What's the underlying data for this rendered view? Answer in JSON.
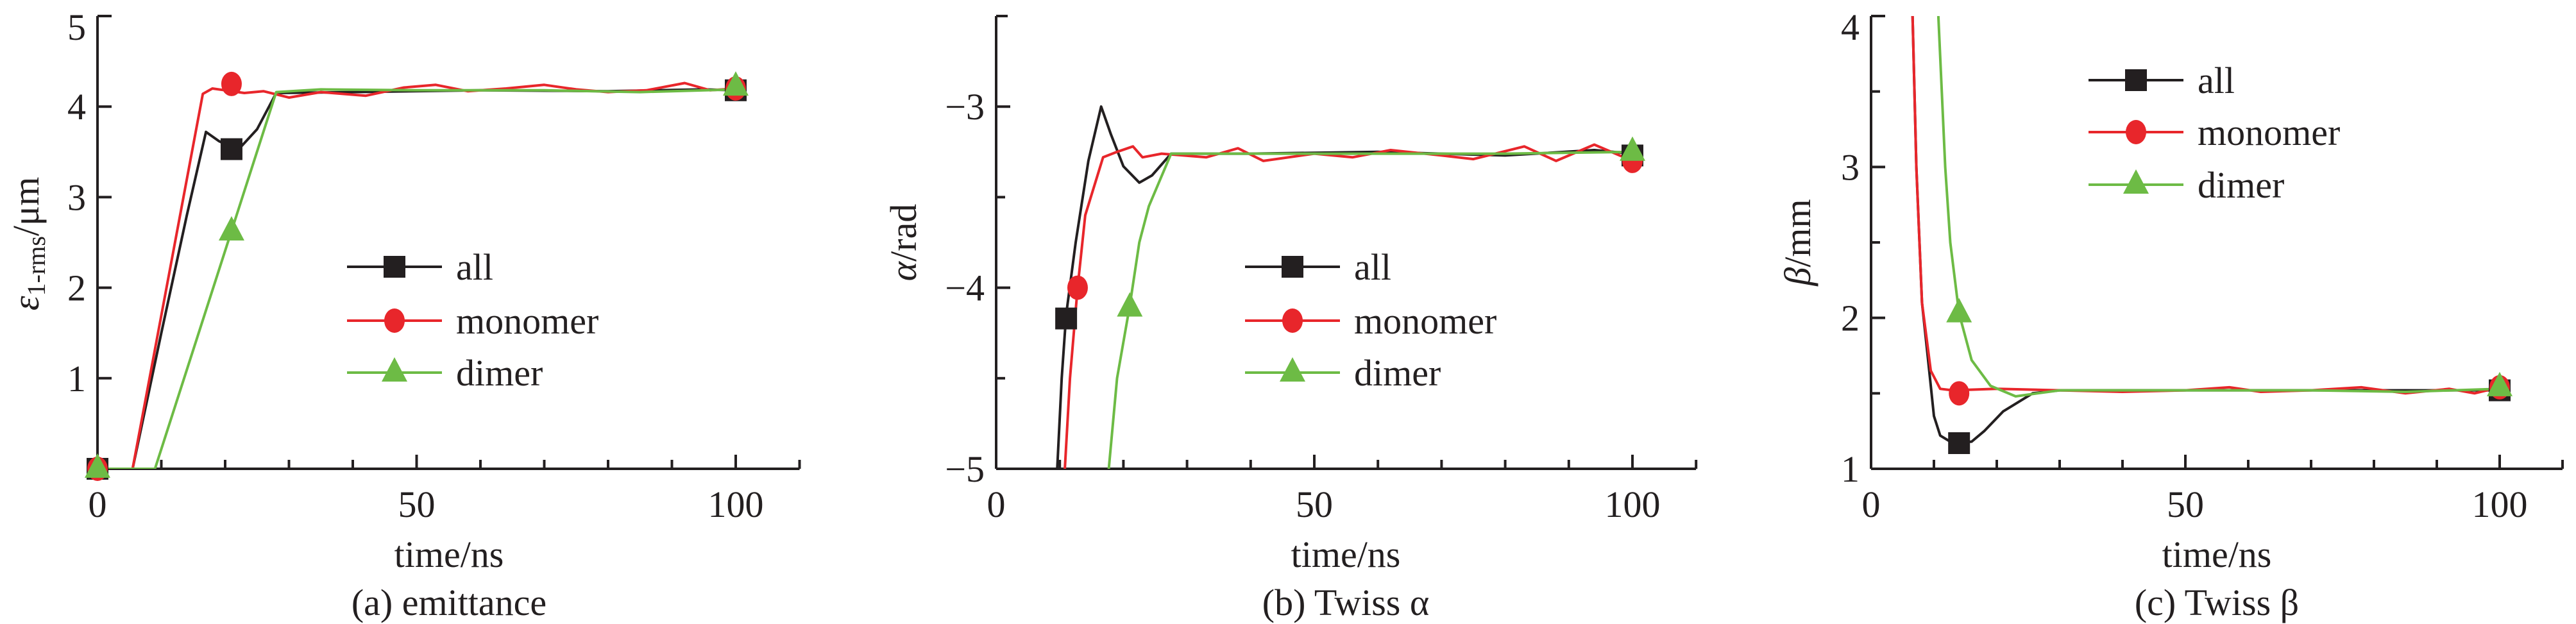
{
  "colors": {
    "all": "#231f20",
    "monomer": "#e8262b",
    "dimer": "#6dbb45",
    "axis": "#231f20"
  },
  "chart_data": [
    {
      "type": "line",
      "title": "(a) emittance",
      "xlabel": "time/ns",
      "ylabel": {
        "symbol": "ε",
        "sub": "1-rms",
        "unit": "/μm"
      },
      "xlim": [
        0,
        110
      ],
      "ylim": [
        0,
        5
      ],
      "xticks": [
        0,
        50,
        100
      ],
      "xminor": 10,
      "yticks": [
        1,
        2,
        3,
        4,
        5
      ],
      "yminor": 1,
      "xtick_labels": [
        "0",
        "50",
        "100"
      ],
      "ytick_labels": [
        "1",
        "2",
        "3",
        "4",
        "5"
      ],
      "legend_position": "center-right",
      "series": [
        {
          "name": "all",
          "key": "all",
          "marker": "square",
          "points": [
            [
              0,
              0
            ],
            [
              5.5,
              0
            ],
            [
              10,
              1.5
            ],
            [
              14,
              2.8
            ],
            [
              17,
              3.72
            ],
            [
              19,
              3.62
            ],
            [
              22,
              3.52
            ],
            [
              25,
              3.75
            ],
            [
              28,
              4.15
            ],
            [
              40,
              4.16
            ],
            [
              60,
              4.18
            ],
            [
              80,
              4.17
            ],
            [
              95,
              4.19
            ],
            [
              100,
              4.18
            ]
          ],
          "markers": [
            [
              0,
              0
            ],
            [
              21,
              3.53
            ],
            [
              100,
              4.18
            ]
          ]
        },
        {
          "name": "monomer",
          "key": "monomer",
          "marker": "circle",
          "points": [
            [
              0,
              0
            ],
            [
              5.5,
              0
            ],
            [
              16.5,
              4.14
            ],
            [
              18,
              4.2
            ],
            [
              20,
              4.18
            ],
            [
              23,
              4.15
            ],
            [
              26,
              4.17
            ],
            [
              30,
              4.1
            ],
            [
              35,
              4.16
            ],
            [
              42,
              4.12
            ],
            [
              48,
              4.21
            ],
            [
              53,
              4.24
            ],
            [
              58,
              4.17
            ],
            [
              64,
              4.2
            ],
            [
              70,
              4.24
            ],
            [
              75,
              4.19
            ],
            [
              80,
              4.16
            ],
            [
              86,
              4.18
            ],
            [
              92,
              4.26
            ],
            [
              96,
              4.18
            ],
            [
              100,
              4.2
            ]
          ],
          "markers": [
            [
              0,
              0
            ],
            [
              21,
              4.25
            ],
            [
              100,
              4.2
            ]
          ]
        },
        {
          "name": "dimer",
          "key": "dimer",
          "marker": "triangle",
          "points": [
            [
              0,
              0
            ],
            [
              9,
              0
            ],
            [
              28,
              4.16
            ],
            [
              35,
              4.19
            ],
            [
              50,
              4.18
            ],
            [
              70,
              4.18
            ],
            [
              85,
              4.16
            ],
            [
              100,
              4.19
            ]
          ],
          "markers": [
            [
              0,
              0
            ],
            [
              21,
              2.62
            ],
            [
              100,
              4.22
            ]
          ]
        }
      ]
    },
    {
      "type": "line",
      "title": "(b) Twiss α",
      "xlabel": "time/ns",
      "ylabel": {
        "symbol": "α",
        "sub": "",
        "unit": "/rad"
      },
      "xlim": [
        0,
        110
      ],
      "ylim": [
        -5,
        -2.5
      ],
      "xticks": [
        0,
        50,
        100
      ],
      "xminor": 10,
      "yticks": [
        -5,
        -4,
        -3
      ],
      "yminor": 0.5,
      "xtick_labels": [
        "0",
        "50",
        "100"
      ],
      "ytick_labels": [
        "−5",
        "−4",
        "−3"
      ],
      "legend_position": "center-right",
      "series": [
        {
          "name": "all",
          "key": "all",
          "marker": "square",
          "points": [
            [
              9.6,
              -5
            ],
            [
              10.3,
              -4.5
            ],
            [
              11,
              -4.15
            ],
            [
              12.5,
              -3.75
            ],
            [
              14.5,
              -3.3
            ],
            [
              16.5,
              -3.0
            ],
            [
              18,
              -3.15
            ],
            [
              20,
              -3.33
            ],
            [
              22.5,
              -3.42
            ],
            [
              24.5,
              -3.38
            ],
            [
              27.5,
              -3.26
            ],
            [
              40,
              -3.26
            ],
            [
              60,
              -3.25
            ],
            [
              80,
              -3.27
            ],
            [
              94,
              -3.24
            ],
            [
              100,
              -3.26
            ]
          ],
          "markers": [
            [
              11,
              -4.17
            ],
            [
              100,
              -3.27
            ]
          ]
        },
        {
          "name": "monomer",
          "key": "monomer",
          "marker": "circle",
          "points": [
            [
              10.8,
              -5
            ],
            [
              11.6,
              -4.5
            ],
            [
              12.8,
              -4.0
            ],
            [
              14,
              -3.6
            ],
            [
              16.8,
              -3.28
            ],
            [
              19,
              -3.25
            ],
            [
              21.5,
              -3.22
            ],
            [
              23,
              -3.28
            ],
            [
              26,
              -3.26
            ],
            [
              33,
              -3.28
            ],
            [
              38,
              -3.23
            ],
            [
              42,
              -3.3
            ],
            [
              50,
              -3.26
            ],
            [
              56,
              -3.28
            ],
            [
              62,
              -3.24
            ],
            [
              70,
              -3.27
            ],
            [
              75,
              -3.29
            ],
            [
              83,
              -3.22
            ],
            [
              88,
              -3.3
            ],
            [
              94,
              -3.21
            ],
            [
              100,
              -3.3
            ]
          ],
          "markers": [
            [
              12.8,
              -4.0
            ],
            [
              100,
              -3.3
            ]
          ]
        },
        {
          "name": "dimer",
          "key": "dimer",
          "marker": "triangle",
          "points": [
            [
              17.7,
              -5
            ],
            [
              19,
              -4.5
            ],
            [
              21,
              -4.1
            ],
            [
              22.5,
              -3.75
            ],
            [
              24,
              -3.55
            ],
            [
              27.5,
              -3.26
            ],
            [
              40,
              -3.26
            ],
            [
              60,
              -3.26
            ],
            [
              80,
              -3.26
            ],
            [
              100,
              -3.25
            ]
          ],
          "markers": [
            [
              21,
              -4.11
            ],
            [
              100,
              -3.25
            ]
          ]
        }
      ]
    },
    {
      "type": "line",
      "title": "(c) Twiss β",
      "xlabel": "time/ns",
      "ylabel": {
        "symbol": "β",
        "sub": "",
        "unit": "/mm"
      },
      "xlim": [
        0,
        110
      ],
      "ylim": [
        1,
        4
      ],
      "xticks": [
        0,
        50,
        100
      ],
      "xminor": 10,
      "yticks": [
        1,
        2,
        3,
        4
      ],
      "yminor": 0.5,
      "xtick_labels": [
        "0",
        "50",
        "100"
      ],
      "ytick_labels": [
        "1",
        "2",
        "3",
        "4"
      ],
      "legend_position": "top-right",
      "series": [
        {
          "name": "all",
          "key": "all",
          "marker": "square",
          "points": [
            [
              6.6,
              4
            ],
            [
              7.2,
              3
            ],
            [
              8.1,
              2.1
            ],
            [
              9,
              1.75
            ],
            [
              10,
              1.35
            ],
            [
              11,
              1.22
            ],
            [
              13,
              1.17
            ],
            [
              16,
              1.18
            ],
            [
              18,
              1.25
            ],
            [
              21,
              1.38
            ],
            [
              25.7,
              1.5
            ],
            [
              30,
              1.52
            ],
            [
              50,
              1.52
            ],
            [
              80,
              1.52
            ],
            [
              100,
              1.52
            ]
          ],
          "markers": [
            [
              14,
              1.17
            ],
            [
              100,
              1.52
            ]
          ]
        },
        {
          "name": "monomer",
          "key": "monomer",
          "marker": "circle",
          "points": [
            [
              6.6,
              4
            ],
            [
              7.2,
              3
            ],
            [
              8.1,
              2.1
            ],
            [
              9.5,
              1.65
            ],
            [
              11,
              1.53
            ],
            [
              13,
              1.52
            ],
            [
              20,
              1.53
            ],
            [
              30,
              1.52
            ],
            [
              40,
              1.51
            ],
            [
              50,
              1.52
            ],
            [
              57,
              1.54
            ],
            [
              62,
              1.51
            ],
            [
              70,
              1.52
            ],
            [
              78,
              1.54
            ],
            [
              85,
              1.5
            ],
            [
              92,
              1.53
            ],
            [
              96,
              1.5
            ],
            [
              100,
              1.54
            ]
          ],
          "markers": [
            [
              14,
              1.5
            ],
            [
              100,
              1.54
            ]
          ]
        },
        {
          "name": "dimer",
          "key": "dimer",
          "marker": "triangle",
          "points": [
            [
              10.7,
              4
            ],
            [
              11.8,
              3
            ],
            [
              12.6,
              2.5
            ],
            [
              14,
              2.03
            ],
            [
              16,
              1.72
            ],
            [
              19,
              1.55
            ],
            [
              23,
              1.48
            ],
            [
              30,
              1.52
            ],
            [
              50,
              1.52
            ],
            [
              70,
              1.52
            ],
            [
              85,
              1.51
            ],
            [
              100,
              1.53
            ]
          ],
          "markers": [
            [
              14,
              2.03
            ],
            [
              100,
              1.54
            ]
          ]
        }
      ]
    }
  ]
}
